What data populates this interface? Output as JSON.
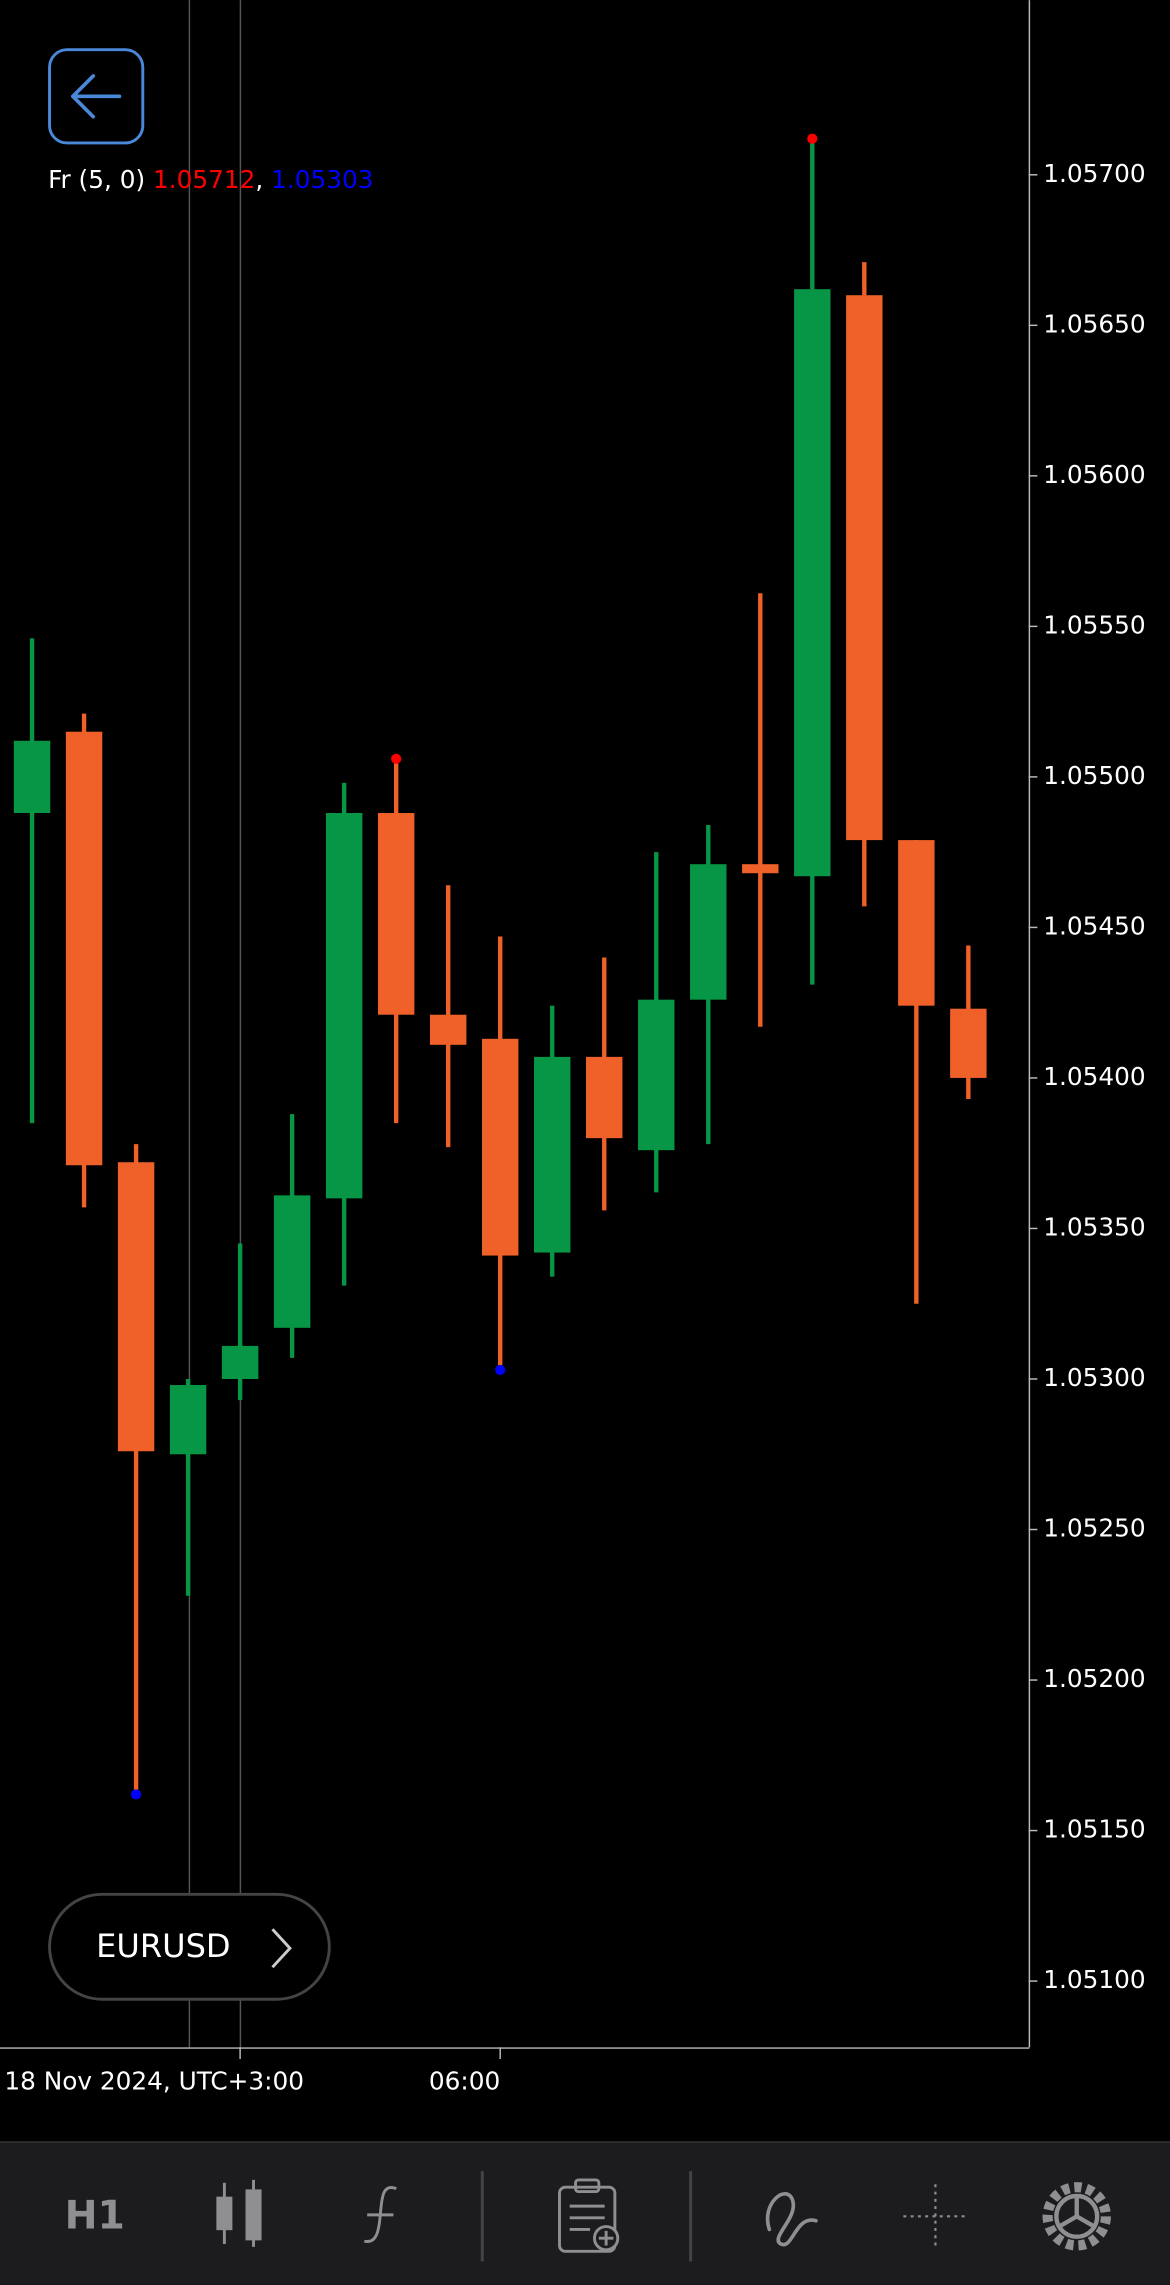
{
  "chart_data": {
    "type": "candlestick",
    "symbol": "EURUSD",
    "timeframe": "H1",
    "up_color": "#079645",
    "down_color": "#f0612a",
    "categories": [
      null,
      null,
      null,
      null,
      "18 Nov 2024, UTC+3:00",
      null,
      null,
      null,
      null,
      "06:00",
      null,
      null,
      null,
      null,
      null,
      null,
      null,
      null,
      null
    ],
    "open": [
      1.05488,
      1.05515,
      1.05372,
      1.05275,
      1.053,
      1.05317,
      1.0536,
      1.05488,
      1.05421,
      1.05413,
      1.05342,
      1.05407,
      1.05376,
      1.05426,
      1.05471,
      1.05467,
      1.0566,
      1.05479,
      1.05423
    ],
    "high": [
      1.05546,
      1.05521,
      1.05378,
      1.053,
      1.05345,
      1.05388,
      1.05498,
      1.05506,
      1.05464,
      1.05447,
      1.05424,
      1.0544,
      1.05475,
      1.05484,
      1.05561,
      1.05712,
      1.05671,
      1.05479,
      1.05444
    ],
    "low": [
      1.05385,
      1.05357,
      1.05162,
      1.05228,
      1.05293,
      1.05307,
      1.05331,
      1.05385,
      1.05377,
      1.05303,
      1.05334,
      1.05356,
      1.05362,
      1.05378,
      1.05417,
      1.05431,
      1.05457,
      1.05325,
      1.05393
    ],
    "close": [
      1.05512,
      1.05371,
      1.05276,
      1.05298,
      1.05311,
      1.05361,
      1.05488,
      1.05421,
      1.05411,
      1.05341,
      1.05407,
      1.0538,
      1.05426,
      1.05471,
      1.05468,
      1.05662,
      1.05479,
      1.05424,
      1.054
    ],
    "ylim": [
      1.05078,
      1.05758
    ],
    "yticks": [
      {
        "value": 1.051,
        "label": "1.05100"
      },
      {
        "value": 1.0515,
        "label": "1.05150"
      },
      {
        "value": 1.052,
        "label": "1.05200"
      },
      {
        "value": 1.0525,
        "label": "1.05250"
      },
      {
        "value": 1.053,
        "label": "1.05300"
      },
      {
        "value": 1.0535,
        "label": "1.05350"
      },
      {
        "value": 1.054,
        "label": "1.05400"
      },
      {
        "value": 1.0545,
        "label": "1.05450"
      },
      {
        "value": 1.055,
        "label": "1.05500"
      },
      {
        "value": 1.0555,
        "label": "1.05550"
      },
      {
        "value": 1.056,
        "label": "1.05600"
      },
      {
        "value": 1.0565,
        "label": "1.05650"
      },
      {
        "value": 1.057,
        "label": "1.05700"
      }
    ],
    "indicator": {
      "name": "Fr (5, 0)",
      "upper": 1.05712,
      "lower": 1.05303,
      "separator": ",",
      "upper_color": "#ff0000",
      "lower_color": "#0000ff",
      "up_fractals": [
        7,
        15
      ],
      "down_fractals": [
        2,
        9
      ]
    }
  }
}
